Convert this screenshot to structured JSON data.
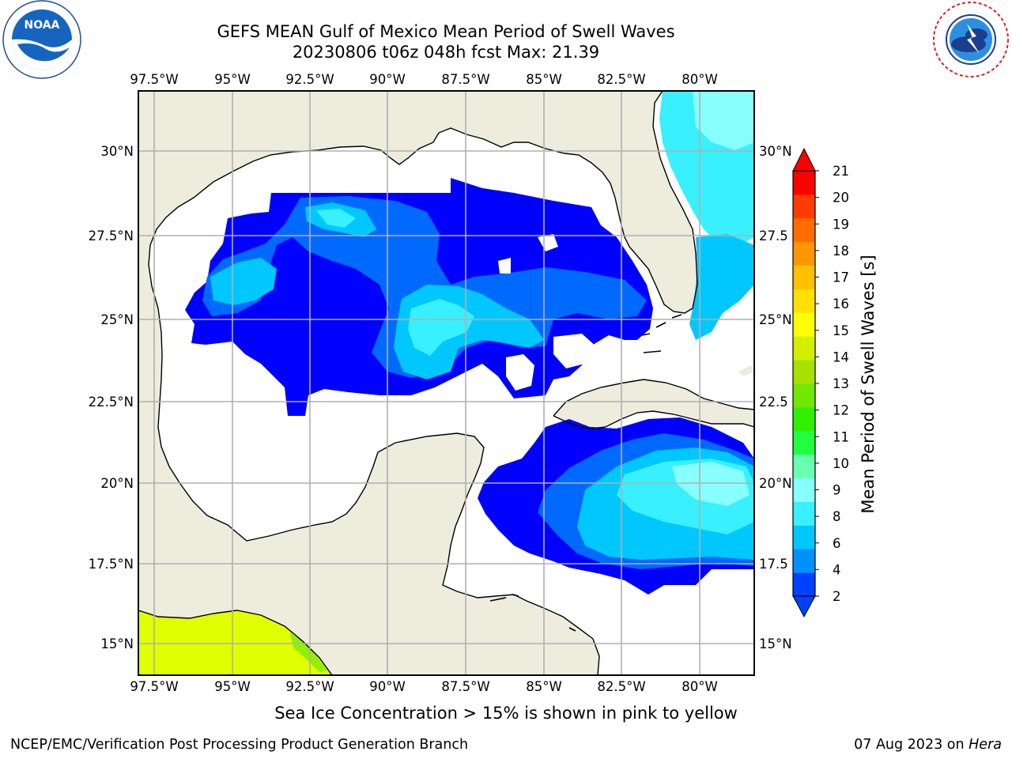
{
  "header": {
    "title_line1": "GEFS MEAN Gulf of Mexico Mean Period of Swell Waves",
    "title_line2": "20230806 t06z 048h fcst   Max: 21.39"
  },
  "logos": {
    "left": {
      "name": "noaa-logo",
      "text": "NOAA",
      "ring_text": "NATIONAL OCEANIC AND ATMOSPHERIC ADMINISTRATION · U.S. DEPARTMENT OF COMMERCE"
    },
    "right": {
      "name": "nws-logo",
      "ring_text": "NATIONAL WEATHER SERVICE"
    }
  },
  "map": {
    "lon_labels": [
      "97.5°W",
      "95°W",
      "92.5°W",
      "90°W",
      "87.5°W",
      "85°W",
      "82.5°W",
      "80°W"
    ],
    "lat_labels_left": [
      "30°N",
      "27.5°N",
      "25°N",
      "22.5°N",
      "20°N",
      "17.5°N",
      "15°N"
    ],
    "lat_labels_right": [
      "30°N",
      "27.5",
      "25°N",
      "22.5",
      "20°N",
      "17.5",
      "15°N"
    ],
    "land_color": "#eeecdd",
    "grid_color": "#b0b0b0"
  },
  "colorbar": {
    "label": "Mean Period of Swell Waves [s]",
    "ticks": [
      "21",
      "20",
      "19",
      "18",
      "17",
      "16",
      "15",
      "14",
      "13",
      "12",
      "11",
      "10",
      "9",
      "8",
      "6",
      "4",
      "2"
    ],
    "colors": [
      "#0040ff",
      "#0090ff",
      "#00c8ff",
      "#38f0ff",
      "#88ffff",
      "#68ffb0",
      "#20ff40",
      "#30f000",
      "#70e800",
      "#a8e000",
      "#d0f000",
      "#ffff00",
      "#ffe000",
      "#ffc000",
      "#ff9800",
      "#ff6c00",
      "#ff3c00",
      "#ff0000"
    ]
  },
  "footer": {
    "note": "Sea Ice Concentration > 15% is shown in pink to yellow",
    "left": "NCEP/EMC/Verification Post Processing Product Generation Branch",
    "right_prefix": "07 Aug 2023 on ",
    "right_host": "Hera"
  }
}
